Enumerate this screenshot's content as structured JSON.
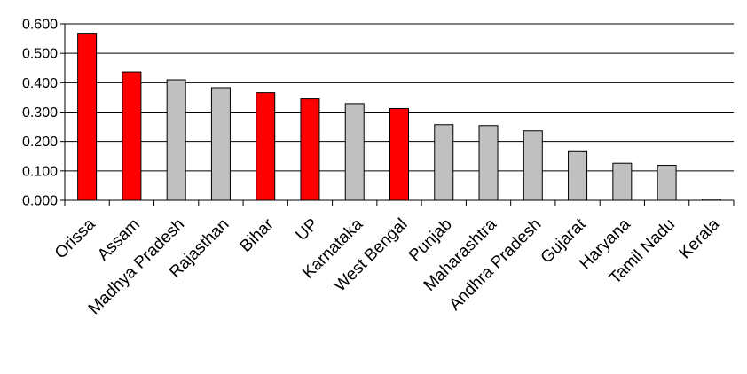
{
  "chart_data": {
    "type": "bar",
    "title": "",
    "xlabel": "",
    "ylabel": "",
    "ylim": [
      0,
      0.6
    ],
    "yticks": [
      "0.000",
      "0.100",
      "0.200",
      "0.300",
      "0.400",
      "0.500",
      "0.600"
    ],
    "grid": true,
    "legend": "none",
    "categories": [
      "Orissa",
      "Assam",
      "Madhya Pradesh",
      "Rajasthan",
      "Bihar",
      "UP",
      "Karnataka",
      "West Bengal",
      "Punjab",
      "Maharashtra",
      "Andhra Pradesh",
      "Gujarat",
      "Haryana",
      "Tamil Nadu",
      "Kerala"
    ],
    "values": [
      0.568,
      0.437,
      0.41,
      0.383,
      0.366,
      0.345,
      0.329,
      0.312,
      0.257,
      0.254,
      0.236,
      0.168,
      0.126,
      0.119,
      0.004
    ],
    "bar_colors": [
      "#ff0000",
      "#ff0000",
      "#c0c0c0",
      "#c0c0c0",
      "#ff0000",
      "#ff0000",
      "#c0c0c0",
      "#ff0000",
      "#c0c0c0",
      "#c0c0c0",
      "#c0c0c0",
      "#c0c0c0",
      "#c0c0c0",
      "#c0c0c0",
      "#c0c0c0"
    ],
    "highlight_color": "#ff0000",
    "default_color": "#c0c0c0"
  }
}
